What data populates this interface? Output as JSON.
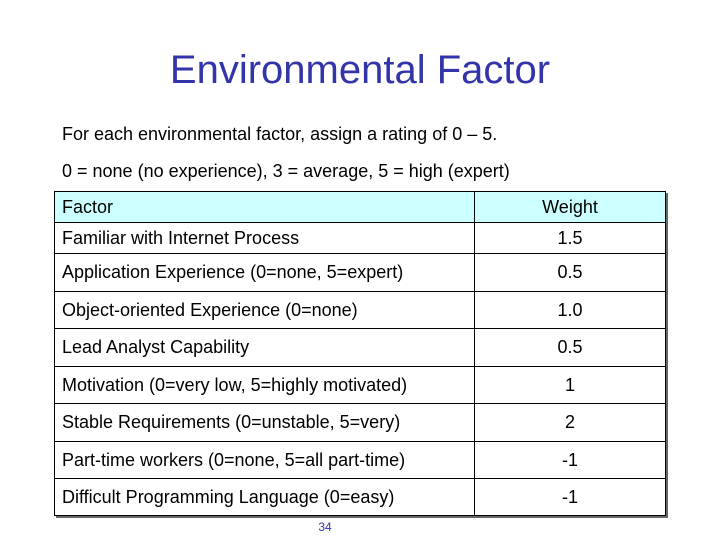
{
  "slide": {
    "title": "Environmental Factor",
    "line1": "For each environmental factor, assign a rating of 0 – 5.",
    "line2": "0 = none (no experience), 3 = average, 5 = high (expert)",
    "page_number": "34"
  },
  "table": {
    "headers": [
      "Factor",
      "Weight"
    ],
    "rows": [
      [
        "Familiar with Internet Process",
        "1.5"
      ],
      [
        "Application Experience (0=none, 5=expert)",
        "0.5"
      ],
      [
        "Object-oriented Experience (0=none)",
        "1.0"
      ],
      [
        "Lead Analyst Capability",
        "0.5"
      ],
      [
        "Motivation (0=very low, 5=highly motivated)",
        "1"
      ],
      [
        "Stable Requirements (0=unstable, 5=very)",
        "2"
      ],
      [
        "Part-time workers (0=none, 5=all part-time)",
        "-1"
      ],
      [
        "Difficult Programming Language (0=easy)",
        "-1"
      ]
    ],
    "header_color": "#ccffff"
  },
  "colors": {
    "title": "#3333aa"
  }
}
